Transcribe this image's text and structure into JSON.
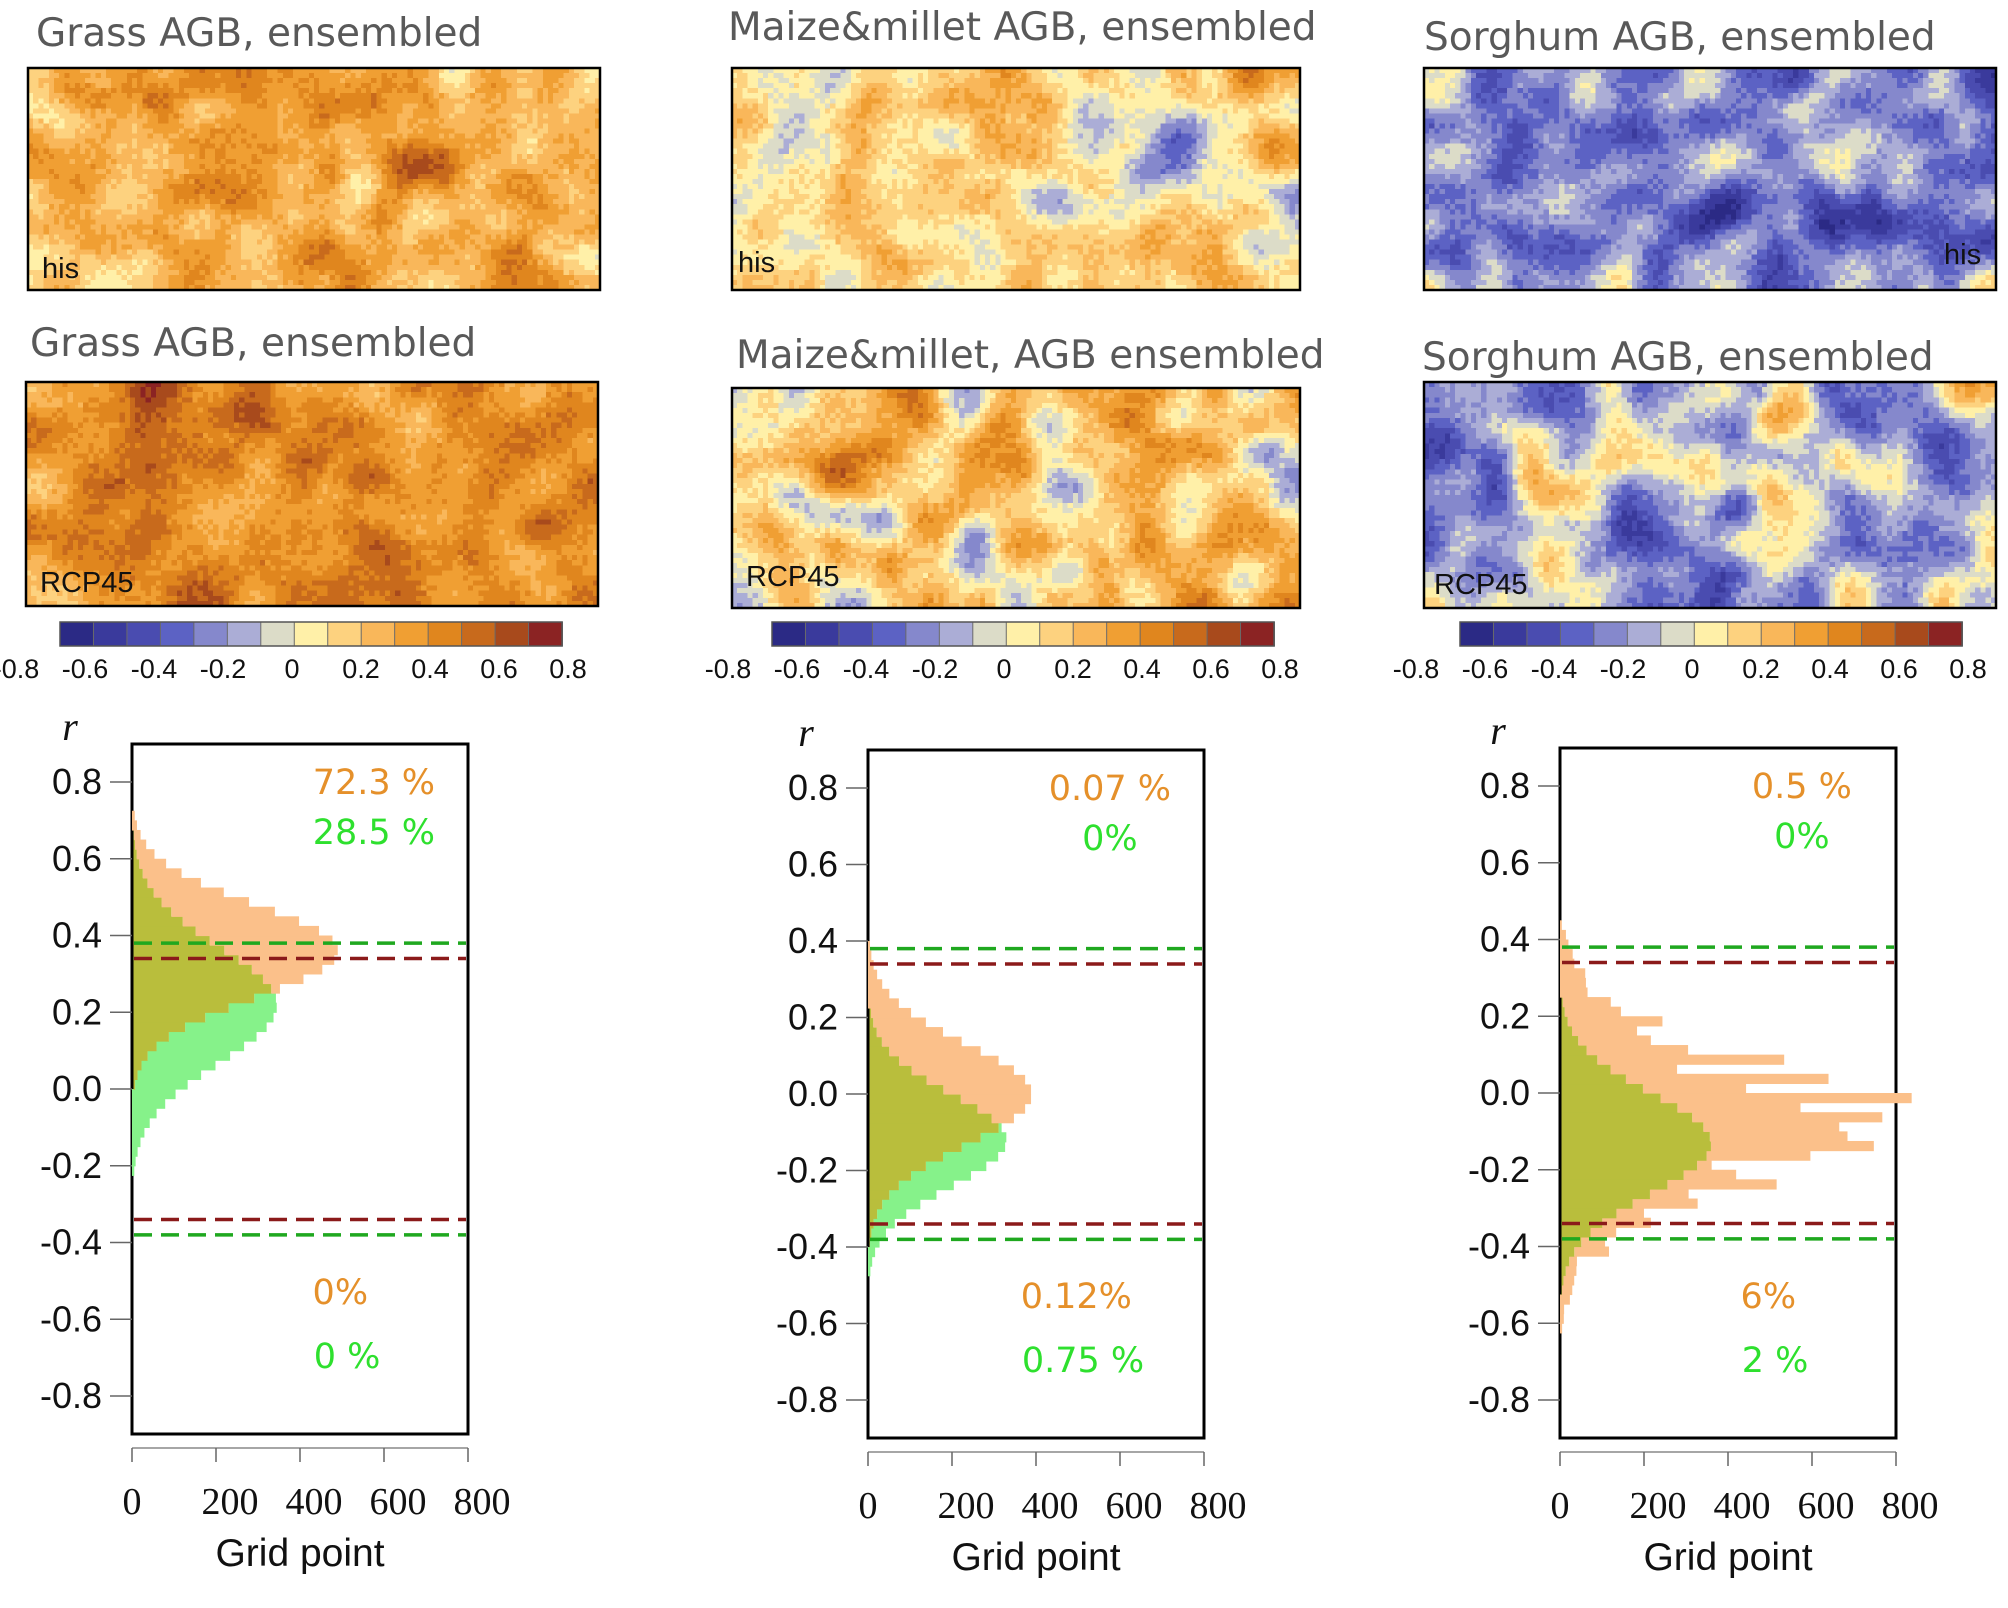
{
  "colorbar": {
    "colors": [
      "#2B2A85",
      "#3A3A9C",
      "#4A4CB0",
      "#5C62C4",
      "#8588CC",
      "#ABADD6",
      "#DCDCC8",
      "#FFF0A8",
      "#FDD27F",
      "#F9B75A",
      "#F09F33",
      "#E0861E",
      "#C86A1C",
      "#A84A1C",
      "#8B2323"
    ],
    "ticks": [
      "-0.8",
      "-0.6",
      "-0.4",
      "-0.2",
      "0",
      "0.2",
      "0.4",
      "0.6",
      "0.8"
    ]
  },
  "panels": [
    {
      "id": "grass",
      "map_his": {
        "title": "Grass AGB, ensembled",
        "tag": "his",
        "mean": 0.3,
        "spread": 0.22
      },
      "map_rcp": {
        "title": "Grass AGB, ensembled",
        "tag": "RCP45",
        "mean": 0.42,
        "spread": 0.18
      }
    },
    {
      "id": "maize",
      "map_his": {
        "title": "Maize&millet AGB, ensembled",
        "tag": "his",
        "mean": 0.02,
        "spread": 0.3
      },
      "map_rcp": {
        "title": "Maize&millet, AGB ensembled",
        "tag": "RCP45",
        "mean": 0.12,
        "spread": 0.28
      }
    },
    {
      "id": "sorghum",
      "map_his": {
        "title": "Sorghum AGB, ensembled",
        "tag": "his",
        "mean": -0.3,
        "spread": 0.3
      },
      "map_rcp": {
        "title": "Sorghum AGB, ensembled",
        "tag": "RCP45",
        "mean": -0.15,
        "spread": 0.3
      }
    }
  ],
  "chart_data": [
    {
      "type": "bar",
      "orientation": "horizontal-histogram",
      "ylabel": "r",
      "xlabel": "Grid point",
      "ylim": [
        -0.8,
        0.8
      ],
      "xlim": [
        0,
        800
      ],
      "yticks": [
        "0.8",
        "0.6",
        "0.4",
        "0.2",
        "0.0",
        "-0.2",
        "-0.4",
        "-0.6",
        "-0.8"
      ],
      "xticks": [
        "0",
        "200",
        "400",
        "600",
        "800"
      ],
      "thresholds": {
        "his": 0.34,
        "rcp": 0.38
      },
      "annotations": {
        "upper_his": "72.3 %",
        "upper_rcp": "28.5 %",
        "lower_his": "0%",
        "lower_rcp": "0 %"
      },
      "series": [
        {
          "mean": 0.36,
          "sd": 0.12,
          "peak": 490,
          "jitter": 0
        },
        {
          "mean": 0.22,
          "sd": 0.15,
          "peak": 345,
          "jitter": 0
        }
      ]
    },
    {
      "type": "bar",
      "orientation": "horizontal-histogram",
      "ylabel": "r",
      "xlabel": "Grid point",
      "ylim": [
        -0.8,
        0.8
      ],
      "xlim": [
        0,
        800
      ],
      "yticks": [
        "0.8",
        "0.6",
        "0.4",
        "0.2",
        "0.0",
        "-0.2",
        "-0.4",
        "-0.6",
        "-0.8"
      ],
      "xticks": [
        "0",
        "200",
        "400",
        "600",
        "800"
      ],
      "thresholds": {
        "his": 0.34,
        "rcp": 0.38
      },
      "annotations": {
        "upper_his": "0.07 %",
        "upper_rcp": "0%",
        "lower_his": "0.12%",
        "lower_rcp": "0.75 %"
      },
      "series": [
        {
          "mean": 0.0,
          "sd": 0.13,
          "peak": 390,
          "jitter": 0
        },
        {
          "mean": -0.12,
          "sd": 0.12,
          "peak": 330,
          "jitter": 0
        }
      ]
    },
    {
      "type": "bar",
      "orientation": "horizontal-histogram",
      "ylabel": "r",
      "xlabel": "Grid point",
      "ylim": [
        -0.8,
        0.8
      ],
      "xlim": [
        0,
        800
      ],
      "yticks": [
        "0.8",
        "0.6",
        "0.4",
        "0.2",
        "0.0",
        "-0.2",
        "-0.4",
        "-0.6",
        "-0.8"
      ],
      "xticks": [
        "0",
        "200",
        "400",
        "600",
        "800"
      ],
      "thresholds": {
        "his": 0.34,
        "rcp": 0.38
      },
      "annotations": {
        "upper_his": "0.5 %",
        "upper_rcp": "0%",
        "lower_his": "6%",
        "lower_rcp": "2 %"
      },
      "series": [
        {
          "mean": -0.08,
          "sd": 0.17,
          "peak": 650,
          "jitter": 1
        },
        {
          "mean": -0.13,
          "sd": 0.13,
          "peak": 360,
          "jitter": 0
        }
      ]
    }
  ],
  "colors": {
    "his": "#FBC08A",
    "rcp": "#86F28A",
    "overlap": "#B9BE3C",
    "line_his": "#8B1A1A",
    "line_rcp": "#1FA81F"
  }
}
